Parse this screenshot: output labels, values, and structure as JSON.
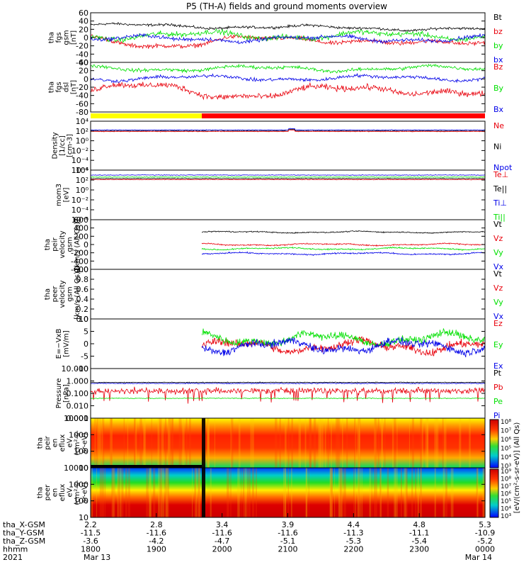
{
  "title": "P5 (TH-A) fields and ground moments overview",
  "colors": {
    "black": "#000000",
    "red": "#e8000b",
    "green": "#00e000",
    "blue": "#0000e8",
    "yellow": "#ffff00",
    "bar_red": "#ff0000"
  },
  "chart_data": [
    {
      "type": "line",
      "id": "fgs",
      "ylabel": [
        "tha",
        "fgs",
        "gsm",
        "[nT]"
      ],
      "yticks": [
        "60",
        "40",
        "20",
        "0",
        "-20",
        "-40",
        "-60"
      ],
      "ylim": [
        -60,
        60
      ],
      "series": [
        {
          "name": "Bt",
          "color": "#000000",
          "level": 30,
          "noise": 6
        },
        {
          "name": "bz",
          "color": "#e8000b",
          "level": -8,
          "noise": 10
        },
        {
          "name": "by",
          "color": "#00e000",
          "level": 5,
          "noise": 12
        },
        {
          "name": "bx",
          "color": "#0000e8",
          "level": -3,
          "noise": 9
        }
      ]
    },
    {
      "type": "line",
      "id": "fgs_dsl",
      "ylabel": [
        "tha",
        "fgs",
        "dsl",
        "[nT]"
      ],
      "yticks": [
        "40",
        "20",
        "0",
        "-20",
        "-40",
        "-60",
        "-80"
      ],
      "ylim": [
        -80,
        40
      ],
      "series": [
        {
          "name": "Bz",
          "color": "#e8000b",
          "level": -30,
          "noise": 14
        },
        {
          "name": "By",
          "color": "#00e000",
          "level": 25,
          "noise": 8
        },
        {
          "name": "Bx",
          "color": "#0000e8",
          "level": 2,
          "noise": 8
        }
      ]
    },
    {
      "type": "line",
      "id": "density",
      "ylabel": [
        "Density",
        "[1/cc]",
        "[cm-3]"
      ],
      "yticks": [
        "10⁴",
        "10²",
        "10⁰",
        "10⁻²",
        "10⁻⁴",
        "10⁻⁶"
      ],
      "series": [
        {
          "name": "Ne",
          "color": "#e8000b"
        },
        {
          "name": "Ni",
          "color": "#000000"
        },
        {
          "name": "Npot",
          "color": "#0000e8"
        }
      ]
    },
    {
      "type": "line",
      "id": "temp",
      "ylabel": [
        "mom3",
        "[eV]"
      ],
      "yticks": [
        "10⁴",
        "10²",
        "10⁰",
        "10⁻²",
        "10⁻⁴",
        "10⁻⁶"
      ],
      "series": [
        {
          "name": "Te⊥",
          "color": "#e8000b"
        },
        {
          "name": "Te||",
          "color": "#000000"
        },
        {
          "name": "Ti⊥",
          "color": "#0000e8"
        },
        {
          "name": "Ti||",
          "color": "#00e000"
        }
      ]
    },
    {
      "type": "line",
      "id": "peir_vel",
      "ylabel": [
        "tha",
        "peir",
        "velocity",
        "gsm",
        "[km/s (All Qs)]"
      ],
      "yticks": [
        "600",
        "400",
        "200",
        "0",
        "-200",
        "-400",
        "-600"
      ],
      "ylim": [
        -600,
        600
      ],
      "series": [
        {
          "name": "Vt",
          "color": "#000000",
          "level": 300,
          "noise": 25
        },
        {
          "name": "Vz",
          "color": "#e8000b",
          "level": 0,
          "noise": 30
        },
        {
          "name": "Vy",
          "color": "#00e000",
          "level": -100,
          "noise": 30
        },
        {
          "name": "Vx",
          "color": "#0000e8",
          "level": -220,
          "noise": 30
        }
      ]
    },
    {
      "type": "line",
      "id": "peer_vel",
      "ylabel": [
        "tha",
        "peer",
        "velocity",
        "gsm",
        "[km/s (All Qs)]"
      ],
      "yticks": [
        "1.0",
        "0.8",
        "0.6",
        "0.4",
        "0.2",
        "0.0"
      ],
      "series": [
        {
          "name": "Vt",
          "color": "#000000"
        },
        {
          "name": "Vz",
          "color": "#e8000b"
        },
        {
          "name": "Vy",
          "color": "#00e000"
        },
        {
          "name": "Vx",
          "color": "#0000e8"
        }
      ]
    },
    {
      "type": "line",
      "id": "efield",
      "ylabel": [
        "E=−VxB",
        "[mV/m]"
      ],
      "yticks": [
        "10",
        "5",
        "0",
        "-5",
        "-10"
      ],
      "ylim": [
        -10,
        10
      ],
      "series": [
        {
          "name": "Ez",
          "color": "#e8000b",
          "level": -1,
          "noise": 3
        },
        {
          "name": "Ey",
          "color": "#00e000",
          "level": 2,
          "noise": 3
        },
        {
          "name": "Ex",
          "color": "#0000e8",
          "level": -1,
          "noise": 3
        }
      ]
    },
    {
      "type": "line",
      "id": "pressure",
      "ylabel": [
        "Pressure",
        "[nPa]"
      ],
      "yticks": [
        "10.000",
        "1.000",
        "0.100",
        "0.010",
        "0.001"
      ],
      "series": [
        {
          "name": "Pt",
          "color": "#000000"
        },
        {
          "name": "Pb",
          "color": "#e8000b"
        },
        {
          "name": "Pe",
          "color": "#00e000"
        },
        {
          "name": "Pi",
          "color": "#0000e8"
        }
      ]
    },
    {
      "type": "heatmap",
      "id": "peir_en",
      "ylabel": [
        "tha",
        "peir",
        "en",
        "eflux",
        "eV",
        "(cm²-s-",
        "sr-eV)"
      ],
      "yticks": [
        "10000",
        "1000",
        "100",
        "10"
      ]
    },
    {
      "type": "heatmap",
      "id": "peer_en",
      "ylabel": [
        "tha",
        "peer",
        "en",
        "eflux",
        "eV",
        "(cm²-s-",
        "sr-eV)"
      ],
      "yticks": [
        "10000",
        "1000",
        "100",
        "10"
      ]
    }
  ],
  "colorbar": {
    "ticks_upper": [
      "10⁸",
      "10⁷",
      "10⁶",
      "10⁵",
      "10⁴",
      "10³"
    ],
    "ticks_lower": [
      "10⁹",
      "10⁸",
      "10⁷",
      "10⁶",
      "10⁵",
      "10⁴",
      "10³"
    ],
    "label": "[eV/(cm²-s-sr-eV)] (All Qs)"
  },
  "xaxis": {
    "row_labels": [
      "tha_X-GSM",
      "tha_Y-GSM",
      "tha_Z-GSM",
      "hhmm",
      "2021"
    ],
    "columns": [
      {
        "x": "2.2",
        "y": "-11.5",
        "z": "-3.6",
        "hhmm": "1800",
        "date": "Mar 13"
      },
      {
        "x": "2.8",
        "y": "-11.6",
        "z": "-4.2",
        "hhmm": "1900",
        "date": ""
      },
      {
        "x": "3.4",
        "y": "-11.6",
        "z": "-4.7",
        "hhmm": "2000",
        "date": ""
      },
      {
        "x": "3.9",
        "y": "-11.6",
        "z": "-5.1",
        "hhmm": "2100",
        "date": ""
      },
      {
        "x": "4.4",
        "y": "-11.3",
        "z": "-5.3",
        "hhmm": "2200",
        "date": ""
      },
      {
        "x": "4.8",
        "y": "-11.1",
        "z": "-5.4",
        "hhmm": "2300",
        "date": ""
      },
      {
        "x": "5.3",
        "y": "-10.9",
        "z": "-5.2",
        "hhmm": "0000",
        "date": "Mar 14"
      }
    ]
  }
}
